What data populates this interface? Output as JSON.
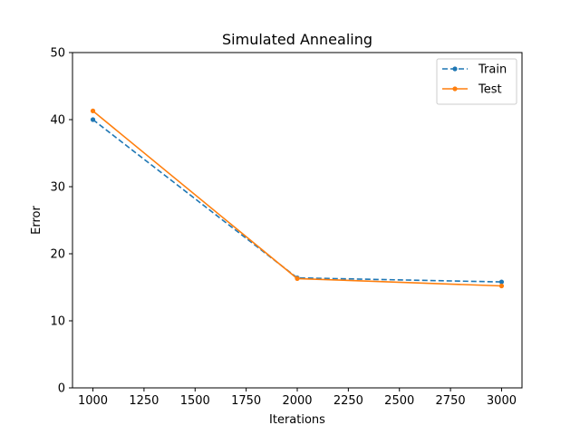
{
  "chart_data": {
    "type": "line",
    "title": "Simulated Annealing",
    "xlabel": "Iterations",
    "ylabel": "Error",
    "x": [
      1000,
      2000,
      3000
    ],
    "xlim": [
      900,
      3100
    ],
    "ylim": [
      0,
      50
    ],
    "xticks": [
      1000,
      1250,
      1500,
      1750,
      2000,
      2250,
      2500,
      2750,
      3000
    ],
    "yticks": [
      0,
      10,
      20,
      30,
      40,
      50
    ],
    "grid": false,
    "legend_position": "top-right",
    "series": [
      {
        "name": "Train",
        "values": [
          40.0,
          16.4,
          15.8
        ],
        "color": "#1f77b4",
        "linestyle": "dashed",
        "marker": "circle"
      },
      {
        "name": "Test",
        "values": [
          41.3,
          16.3,
          15.2
        ],
        "color": "#ff7f0e",
        "linestyle": "solid",
        "marker": "circle"
      }
    ]
  }
}
